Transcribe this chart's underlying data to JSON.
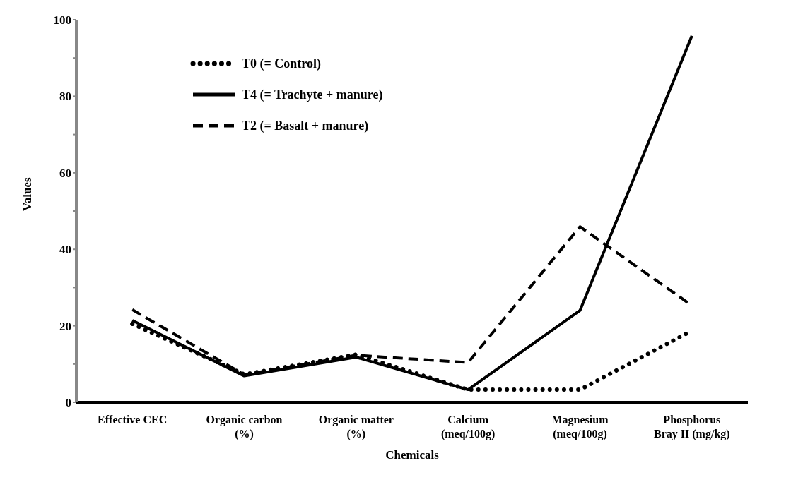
{
  "chart_data": {
    "type": "line",
    "xlabel": "Chemicals",
    "ylabel": "Values",
    "categories": [
      "Effective CEC",
      "Organic carbon\n(%)",
      "Organic matter\n(%)",
      "Calcium\n(meq/100g)",
      "Magnesium\n(meq/100g)",
      "Phosphorus\nBray II (mg/kg)"
    ],
    "series": [
      {
        "name": "T0 (= Control)",
        "color": "#000000",
        "line_style": "dotted",
        "values": [
          20.5,
          7.3,
          12.5,
          3.3,
          3.3,
          18.7
        ]
      },
      {
        "name": "T4 (= Trachyte + manure)",
        "color": "#000000",
        "line_style": "solid",
        "values": [
          21.4,
          6.9,
          11.8,
          3.3,
          24,
          95.8
        ]
      },
      {
        "name": "T2 (= Basalt + manure)",
        "color": "#000000",
        "line_style": "dashed",
        "values": [
          24.2,
          7.2,
          12.3,
          10.4,
          45.9,
          25.3
        ]
      }
    ],
    "ylim": [
      0,
      100
    ],
    "yticks": [
      0,
      {
        "value": 10,
        "label": null
      },
      20,
      {
        "value": 30,
        "label": null
      },
      40,
      {
        "value": 50,
        "label": null
      },
      60,
      {
        "value": 70,
        "label": null
      },
      80,
      {
        "value": 90,
        "label": null
      },
      100
    ],
    "grid": false,
    "legend": "top left",
    "marker": "none"
  }
}
